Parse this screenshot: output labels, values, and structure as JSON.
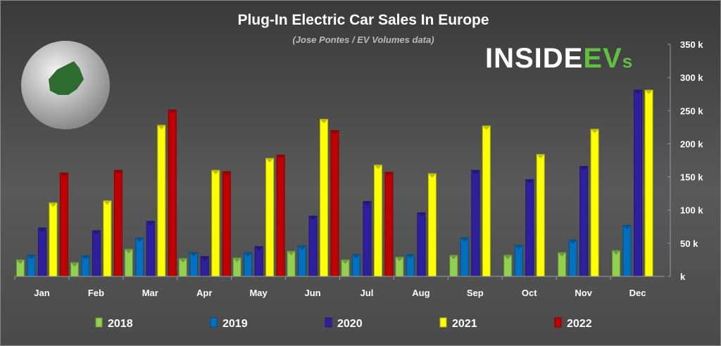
{
  "chart_data": {
    "type": "bar",
    "title": "Plug-In Electric Car Sales In Europe",
    "subtitle": "(Jose Pontes / EV Volumes data)",
    "logo_text": "INSIDEEVs",
    "xlabel": "",
    "ylabel": "",
    "ylim": [
      0,
      350000
    ],
    "yticks": [
      0,
      50000,
      100000,
      150000,
      200000,
      250000,
      300000,
      350000
    ],
    "ytick_labels": [
      "k",
      "50 k",
      "100 k",
      "150 k",
      "200 k",
      "250 k",
      "300 k",
      "350 k"
    ],
    "grid": false,
    "legend_position": "bottom",
    "categories": [
      "Jan",
      "Feb",
      "Mar",
      "Apr",
      "May",
      "Jun",
      "Jul",
      "Aug",
      "Sep",
      "Oct",
      "Nov",
      "Dec"
    ],
    "series": [
      {
        "name": "2018",
        "color": "#92d050",
        "values": [
          25000,
          21000,
          41000,
          27000,
          28000,
          38000,
          25000,
          29000,
          32000,
          32000,
          36000,
          39000
        ]
      },
      {
        "name": "2019",
        "color": "#0070c0",
        "values": [
          32000,
          31000,
          58000,
          36000,
          36000,
          46000,
          33000,
          33000,
          58000,
          47000,
          55000,
          77000
        ]
      },
      {
        "name": "2020",
        "color": "#2e1f9e",
        "values": [
          73000,
          69000,
          83000,
          30000,
          45000,
          91000,
          113000,
          96000,
          160000,
          146000,
          166000,
          281000
        ]
      },
      {
        "name": "2021",
        "color": "#ffff00",
        "values": [
          111000,
          114000,
          228000,
          160000,
          178000,
          237000,
          168000,
          155000,
          227000,
          184000,
          222000,
          281000
        ]
      },
      {
        "name": "2022",
        "color": "#c00000",
        "values": [
          156000,
          160000,
          251000,
          158000,
          183000,
          220000,
          157000,
          null,
          null,
          null,
          null,
          null
        ]
      }
    ]
  }
}
